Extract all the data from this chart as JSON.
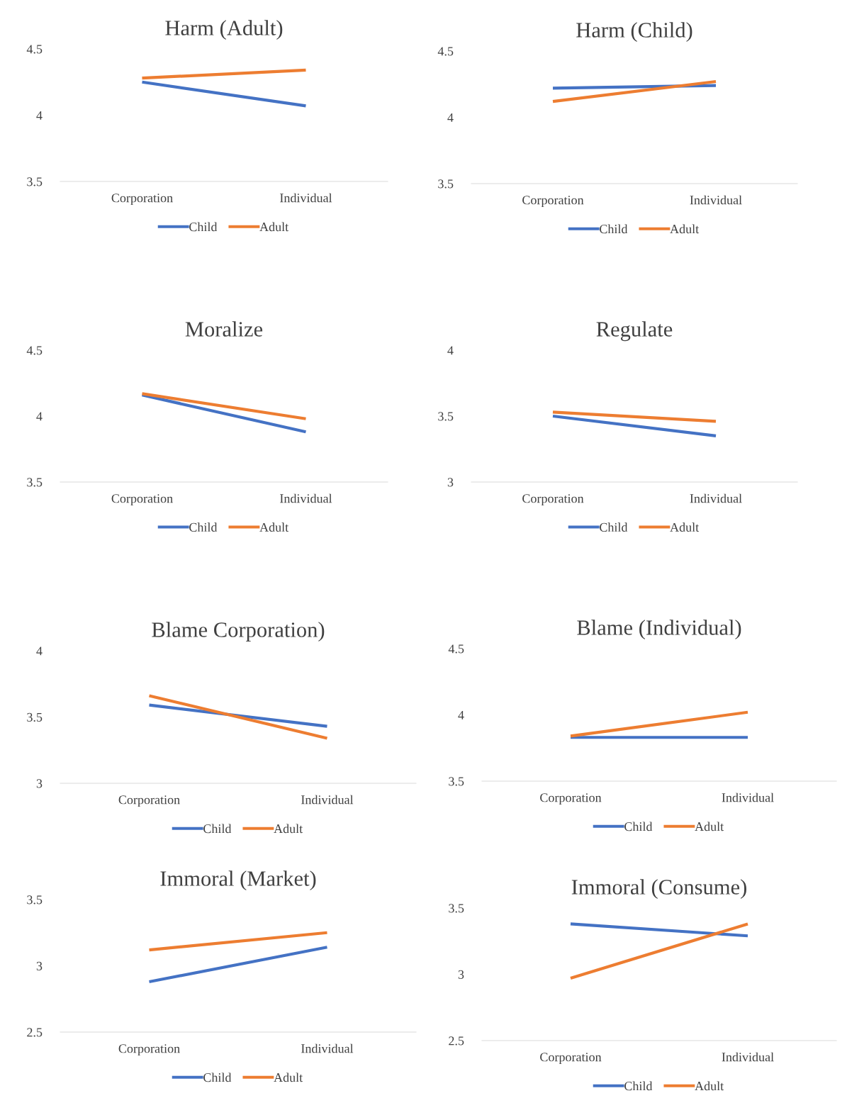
{
  "chart_data": [
    {
      "type": "line",
      "title": "Harm (Adult)",
      "categories": [
        "Corporation",
        "Individual"
      ],
      "ylim": [
        3.5,
        4.5
      ],
      "yticks": [
        3.5,
        4,
        4.5
      ],
      "legend": "bottom",
      "grid": false,
      "series": [
        {
          "name": "Child",
          "color": "#4472c4",
          "values": [
            4.25,
            4.07
          ]
        },
        {
          "name": "Adult",
          "color": "#ed7d31",
          "values": [
            4.28,
            4.34
          ]
        }
      ]
    },
    {
      "type": "line",
      "title": "Harm (Child)",
      "categories": [
        "Corporation",
        "Individual"
      ],
      "ylim": [
        3.5,
        4.5
      ],
      "yticks": [
        3.5,
        4,
        4.5
      ],
      "legend": "bottom",
      "grid": false,
      "series": [
        {
          "name": "Child",
          "color": "#4472c4",
          "values": [
            4.22,
            4.24
          ]
        },
        {
          "name": "Adult",
          "color": "#ed7d31",
          "values": [
            4.12,
            4.27
          ]
        }
      ]
    },
    {
      "type": "line",
      "title": "Moralize",
      "categories": [
        "Corporation",
        "Individual"
      ],
      "ylim": [
        3.5,
        4.5
      ],
      "yticks": [
        3.5,
        4,
        4.5
      ],
      "legend": "bottom",
      "grid": false,
      "series": [
        {
          "name": "Child",
          "color": "#4472c4",
          "values": [
            4.16,
            3.88
          ]
        },
        {
          "name": "Adult",
          "color": "#ed7d31",
          "values": [
            4.17,
            3.98
          ]
        }
      ]
    },
    {
      "type": "line",
      "title": "Regulate",
      "categories": [
        "Corporation",
        "Individual"
      ],
      "ylim": [
        3,
        4
      ],
      "yticks": [
        3,
        3.5,
        4
      ],
      "legend": "bottom",
      "grid": false,
      "series": [
        {
          "name": "Child",
          "color": "#4472c4",
          "values": [
            3.5,
            3.35
          ]
        },
        {
          "name": "Adult",
          "color": "#ed7d31",
          "values": [
            3.53,
            3.46
          ]
        }
      ]
    },
    {
      "type": "line",
      "title": "Blame Corporation)",
      "categories": [
        "Corporation",
        "Individual"
      ],
      "ylim": [
        3,
        4
      ],
      "yticks": [
        3,
        3.5,
        4
      ],
      "legend": "bottom",
      "grid": false,
      "series": [
        {
          "name": "Child",
          "color": "#4472c4",
          "values": [
            3.59,
            3.43
          ]
        },
        {
          "name": "Adult",
          "color": "#ed7d31",
          "values": [
            3.66,
            3.34
          ]
        }
      ]
    },
    {
      "type": "line",
      "title": "Blame (Individual)",
      "categories": [
        "Corporation",
        "Individual"
      ],
      "ylim": [
        3.5,
        4.5
      ],
      "yticks": [
        3.5,
        4,
        4.5
      ],
      "legend": "bottom",
      "grid": false,
      "series": [
        {
          "name": "Child",
          "color": "#4472c4",
          "values": [
            3.83,
            3.83
          ]
        },
        {
          "name": "Adult",
          "color": "#ed7d31",
          "values": [
            3.84,
            4.02
          ]
        }
      ]
    },
    {
      "type": "line",
      "title": "Immoral (Market)",
      "categories": [
        "Corporation",
        "Individual"
      ],
      "ylim": [
        2.5,
        3.5
      ],
      "yticks": [
        2.5,
        3,
        3.5
      ],
      "legend": "bottom",
      "grid": false,
      "series": [
        {
          "name": "Child",
          "color": "#4472c4",
          "values": [
            2.88,
            3.14
          ]
        },
        {
          "name": "Adult",
          "color": "#ed7d31",
          "values": [
            3.12,
            3.25
          ]
        }
      ]
    },
    {
      "type": "line",
      "title": "Immoral (Consume)",
      "categories": [
        "Corporation",
        "Individual"
      ],
      "ylim": [
        2.5,
        3.5
      ],
      "yticks": [
        2.5,
        3,
        3.5
      ],
      "legend": "bottom",
      "grid": false,
      "series": [
        {
          "name": "Child",
          "color": "#4472c4",
          "values": [
            3.38,
            3.29
          ]
        },
        {
          "name": "Adult",
          "color": "#ed7d31",
          "values": [
            2.97,
            3.38
          ]
        }
      ]
    }
  ]
}
